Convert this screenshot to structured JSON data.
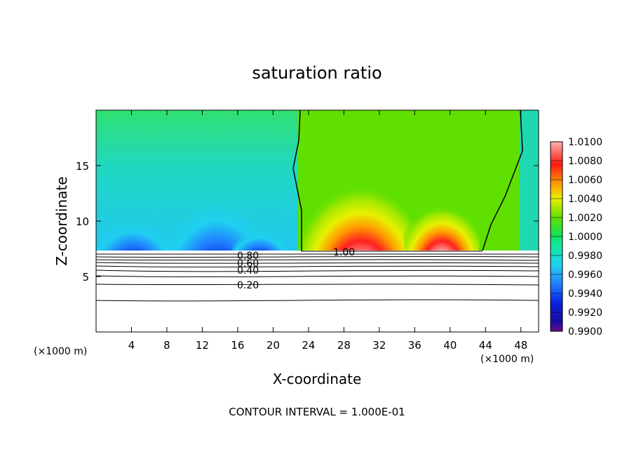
{
  "chart_data": {
    "type": "heatmap",
    "title": "saturation ratio",
    "xlabel": "X-coordinate",
    "ylabel": "Z-coordinate",
    "x_unit": "(×1000 m)",
    "x_unit_right": "(×1000 m)",
    "xlim": [
      0,
      50
    ],
    "ylim": [
      0,
      20
    ],
    "x_ticks": [
      4,
      8,
      12,
      16,
      20,
      24,
      28,
      32,
      36,
      40,
      44,
      48
    ],
    "x_tick_labels": [
      "4",
      "8",
      "12",
      "16",
      "20",
      "24",
      "28",
      "32",
      "36",
      "40",
      "44",
      "48"
    ],
    "y_ticks": [
      5,
      10,
      15
    ],
    "y_tick_labels": [
      "5",
      "10",
      "15"
    ],
    "colorbar": {
      "min": 0.99,
      "max": 1.01,
      "labels": [
        "1.0100",
        "1.0080",
        "1.0060",
        "1.0040",
        "1.0020",
        "1.0000",
        "0.9980",
        "0.9960",
        "0.9940",
        "0.9920",
        "0.9900"
      ]
    },
    "contour_labels": [
      "0.80",
      "0.60",
      "0.40",
      "0.20",
      "1.00"
    ],
    "contour_interval_text": "CONTOUR INTERVAL = 1.000E-01"
  }
}
